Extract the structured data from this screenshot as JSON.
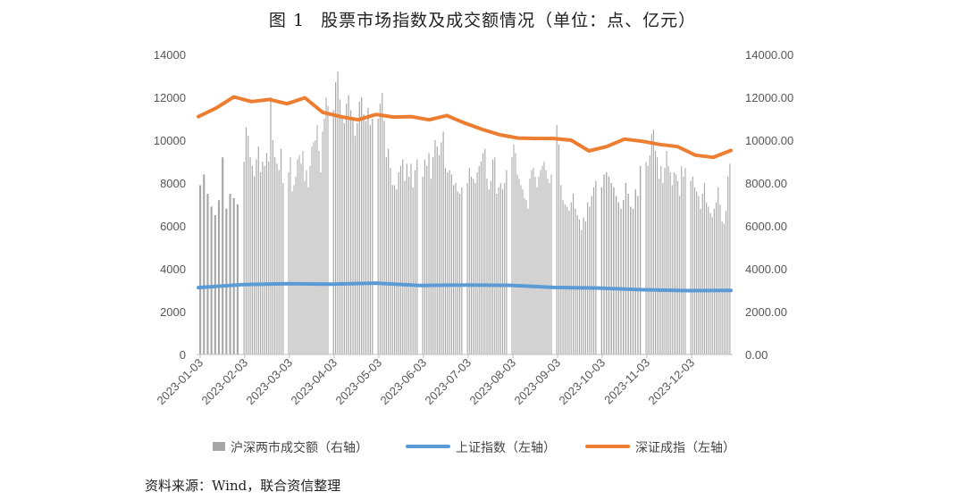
{
  "figure": {
    "number": "图 1",
    "title": "股票市场指数及成交额情况（单位：点、亿元）"
  },
  "source_note": "资料来源：Wind，联合资信整理",
  "chart_data": {
    "type": "bar+line",
    "title": "股票市场指数及成交额情况（单位：点、亿元）",
    "left_axis": {
      "range": [
        0,
        14000
      ],
      "ticks": [
        "0",
        "2000",
        "4000",
        "6000",
        "8000",
        "10000",
        "12000",
        "14000"
      ]
    },
    "right_axis": {
      "range": [
        0,
        14000
      ],
      "ticks": [
        "0.00",
        "2000.00",
        "4000.00",
        "6000.00",
        "8000.00",
        "10000.00",
        "12000.00",
        "14000.00"
      ]
    },
    "x_ticks": [
      "2023-01-03",
      "2023-02-03",
      "2023-03-03",
      "2023-04-03",
      "2023-05-03",
      "2023-06-03",
      "2023-07-03",
      "2023-08-03",
      "2023-09-03",
      "2023-10-03",
      "2023-11-03",
      "2023-12-03"
    ],
    "legend_position": "bottom",
    "gridlines": false,
    "series": [
      {
        "name": "沪深两市成交额（右轴）",
        "kind": "bar",
        "axis": "right",
        "color": "#a6a6a6",
        "monthly_values": [
          [
            7900,
            8400,
            7500,
            6900,
            6500,
            7200,
            9200,
            6800,
            7500,
            7300,
            7000
          ],
          [
            9000,
            10600,
            10200,
            9200,
            8800,
            8300,
            9100,
            9700,
            8500,
            9000,
            8800,
            9400,
            9000,
            12000,
            10000,
            9200,
            8900,
            8600,
            9600,
            8000
          ],
          [
            8500,
            9200,
            7600,
            7900,
            8300,
            9100,
            9300,
            8900,
            9500,
            8100,
            8600,
            7800,
            8800,
            9700,
            9900,
            10000,
            10700,
            9500,
            8500,
            10400,
            11000,
            12000,
            11600
          ],
          [
            11400,
            12700,
            13200,
            11900,
            11100,
            10800,
            11700,
            12100,
            11400,
            11000,
            10200,
            10800,
            11800,
            12000,
            11200,
            10900,
            11500,
            10700,
            11000
          ],
          [
            11000,
            11700,
            12200,
            10900,
            9200,
            9600,
            8700,
            7900,
            7900,
            7700,
            8500,
            8800,
            9100,
            8100,
            8900,
            8300,
            8900,
            7800,
            8600,
            9100
          ],
          [
            8300,
            9100,
            8800,
            9400,
            8200,
            9200,
            10000,
            9700,
            9300,
            9900,
            10400,
            8700,
            8500,
            8600,
            8400,
            7900,
            8000,
            7600,
            7500,
            7800
          ],
          [
            8000,
            8700,
            8300,
            8200,
            8000,
            8500,
            8800,
            9000,
            9400,
            9600,
            8200,
            7700,
            8100,
            9100,
            9200,
            7500,
            7800,
            8000,
            7700,
            8000,
            8600
          ],
          [
            9200,
            9800,
            9400,
            8400,
            8200,
            7900,
            7700,
            7300,
            7200,
            6800,
            8200,
            8600,
            8700,
            8300,
            7800,
            8300,
            8600,
            8800,
            9000,
            8600,
            8200,
            8000,
            8400
          ],
          [
            10700,
            9800,
            7900,
            7200,
            7000,
            6900,
            6700,
            7100,
            7500,
            6800,
            6500,
            6300,
            5800,
            6400,
            6200,
            7100,
            6900,
            7400,
            7800,
            8100
          ],
          [
            7800,
            8400,
            8500,
            8300,
            8000,
            7800,
            7400,
            7100,
            6800,
            7200,
            8000,
            7500,
            6900,
            6800,
            7700,
            7400,
            8800
          ],
          [
            9000,
            8800,
            9300,
            10300,
            10500,
            9500,
            9200,
            8200,
            8800,
            8000,
            8700,
            9500,
            8800,
            8500,
            7900,
            8500,
            8400,
            8100,
            7400,
            8800,
            8300,
            8700
          ],
          [
            8100,
            8300,
            7800,
            7600,
            7400,
            6800,
            7500,
            8000,
            7100,
            6900,
            6600,
            6400,
            6800,
            7100,
            7800,
            7000,
            6200,
            6100,
            6700,
            8300,
            8900
          ]
        ]
      },
      {
        "name": "上证指数（左轴）",
        "kind": "line",
        "axis": "left",
        "color": "#5b9bd5",
        "monthly_values": [
          3120,
          3260,
          3300,
          3280,
          3330,
          3220,
          3240,
          3230,
          3130,
          3100,
          3020,
          2980,
          2990
        ]
      },
      {
        "name": "深证成指（左轴）",
        "kind": "line",
        "axis": "left",
        "color": "#ed7d31",
        "monthly_values": [
          11100,
          11500,
          12020,
          11800,
          11900,
          11700,
          11980,
          11300,
          11100,
          10950,
          11200,
          11080,
          11100,
          10950,
          11150,
          10800,
          10500,
          10250,
          10100,
          10080,
          10080,
          10000,
          9500,
          9700,
          10050,
          9950,
          9800,
          9700,
          9300,
          9200,
          9520
        ]
      }
    ]
  }
}
